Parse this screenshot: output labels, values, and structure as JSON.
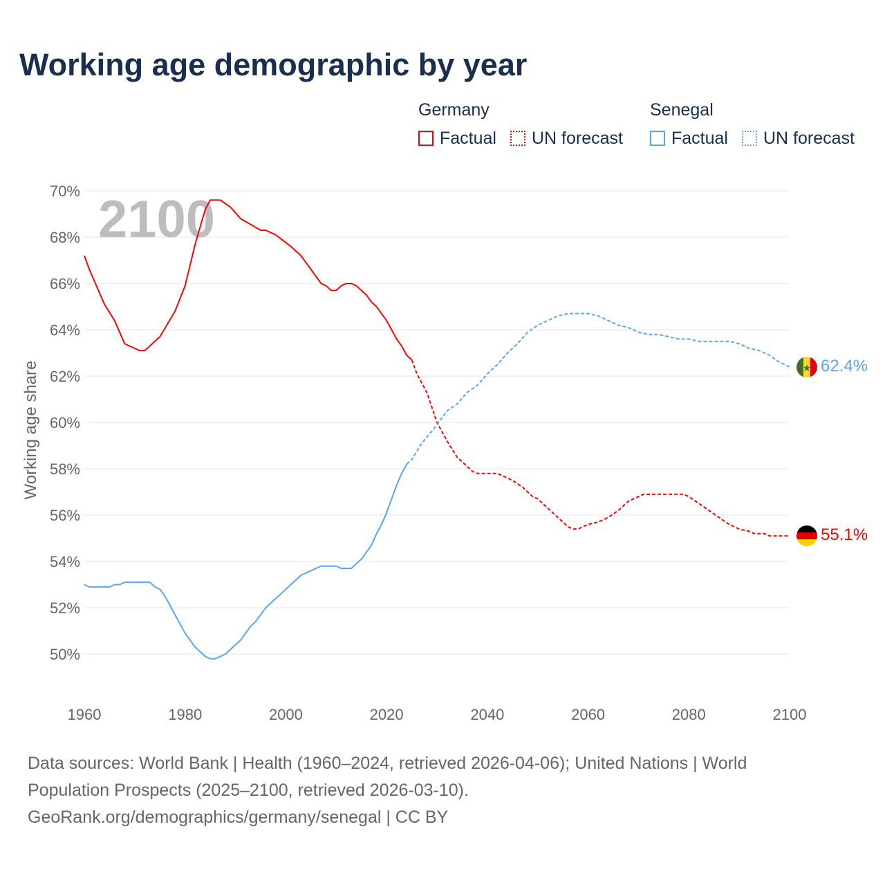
{
  "chart_data": {
    "type": "line",
    "title": "Working age demographic by year",
    "ylabel": "Working age share",
    "xlabel": "",
    "xlim": [
      1960,
      2100
    ],
    "ylim": [
      50,
      70
    ],
    "x_ticks": [
      "1960",
      "1980",
      "2000",
      "2020",
      "2040",
      "2060",
      "2080",
      "2100"
    ],
    "y_ticks": [
      "50%",
      "52%",
      "54%",
      "56%",
      "58%",
      "60%",
      "62%",
      "64%",
      "66%",
      "68%",
      "70%"
    ],
    "grid": true,
    "watermark_year": "2100",
    "legend": {
      "placement": "top-right",
      "groups": [
        {
          "name": "Germany",
          "entries": [
            "Factual",
            "UN forecast"
          ],
          "color": "#ff0000"
        },
        {
          "name": "Senegal",
          "entries": [
            "Factual",
            "UN forecast"
          ],
          "color": "#5aa5ef"
        }
      ]
    },
    "series": [
      {
        "name": "Germany",
        "color": "#ff0000",
        "end_label": "55.1%",
        "factual": [
          [
            1960,
            67.2
          ],
          [
            1961,
            66.6
          ],
          [
            1964,
            65.1
          ],
          [
            1966,
            64.4
          ],
          [
            1968,
            63.4
          ],
          [
            1971,
            63.1
          ],
          [
            1972,
            63.1
          ],
          [
            1975,
            63.7
          ],
          [
            1978,
            64.8
          ],
          [
            1980,
            65.9
          ],
          [
            1982,
            67.7
          ],
          [
            1984,
            69.2
          ],
          [
            1985,
            69.6
          ],
          [
            1987,
            69.6
          ],
          [
            1989,
            69.3
          ],
          [
            1991,
            68.8
          ],
          [
            1995,
            68.3
          ],
          [
            1996,
            68.3
          ],
          [
            1998,
            68.1
          ],
          [
            2001,
            67.6
          ],
          [
            2003,
            67.2
          ],
          [
            2005,
            66.6
          ],
          [
            2007,
            66.0
          ],
          [
            2008,
            65.9
          ],
          [
            2009,
            65.7
          ],
          [
            2010,
            65.7
          ],
          [
            2011,
            65.9
          ],
          [
            2012,
            66.0
          ],
          [
            2013,
            66.0
          ],
          [
            2014,
            65.9
          ],
          [
            2016,
            65.5
          ],
          [
            2017,
            65.2
          ],
          [
            2018,
            65.0
          ],
          [
            2020,
            64.4
          ],
          [
            2022,
            63.6
          ],
          [
            2023,
            63.3
          ],
          [
            2024,
            62.9
          ],
          [
            2025,
            62.7
          ]
        ],
        "forecast": [
          [
            2025,
            62.7
          ],
          [
            2026,
            62.1
          ],
          [
            2028,
            61.3
          ],
          [
            2030,
            60.0
          ],
          [
            2032,
            59.2
          ],
          [
            2034,
            58.5
          ],
          [
            2036,
            58.1
          ],
          [
            2037,
            57.9
          ],
          [
            2038,
            57.8
          ],
          [
            2042,
            57.8
          ],
          [
            2045,
            57.5
          ],
          [
            2047,
            57.2
          ],
          [
            2049,
            56.8
          ],
          [
            2050,
            56.7
          ],
          [
            2052,
            56.3
          ],
          [
            2054,
            55.9
          ],
          [
            2056,
            55.5
          ],
          [
            2057,
            55.4
          ],
          [
            2058,
            55.4
          ],
          [
            2060,
            55.6
          ],
          [
            2062,
            55.7
          ],
          [
            2064,
            55.9
          ],
          [
            2066,
            56.2
          ],
          [
            2068,
            56.6
          ],
          [
            2070,
            56.8
          ],
          [
            2071,
            56.9
          ],
          [
            2079,
            56.9
          ],
          [
            2080,
            56.8
          ],
          [
            2082,
            56.5
          ],
          [
            2084,
            56.2
          ],
          [
            2086,
            55.9
          ],
          [
            2088,
            55.6
          ],
          [
            2090,
            55.4
          ],
          [
            2092,
            55.3
          ],
          [
            2093,
            55.2
          ],
          [
            2095,
            55.2
          ],
          [
            2096,
            55.1
          ],
          [
            2100,
            55.1
          ]
        ]
      },
      {
        "name": "Senegal",
        "color": "#5aa5ef",
        "end_label": "62.4%",
        "factual": [
          [
            1960,
            53.0
          ],
          [
            1961,
            52.9
          ],
          [
            1965,
            52.9
          ],
          [
            1966,
            53.0
          ],
          [
            1967,
            53.0
          ],
          [
            1968,
            53.1
          ],
          [
            1973,
            53.1
          ],
          [
            1974,
            52.9
          ],
          [
            1975,
            52.8
          ],
          [
            1976,
            52.5
          ],
          [
            1978,
            51.7
          ],
          [
            1980,
            50.9
          ],
          [
            1982,
            50.3
          ],
          [
            1984,
            49.9
          ],
          [
            1985,
            49.8
          ],
          [
            1986,
            49.8
          ],
          [
            1988,
            50.0
          ],
          [
            1991,
            50.6
          ],
          [
            1993,
            51.2
          ],
          [
            1994,
            51.4
          ],
          [
            1996,
            52.0
          ],
          [
            1998,
            52.4
          ],
          [
            2000,
            52.8
          ],
          [
            2003,
            53.4
          ],
          [
            2005,
            53.6
          ],
          [
            2007,
            53.8
          ],
          [
            2010,
            53.8
          ],
          [
            2011,
            53.7
          ],
          [
            2013,
            53.7
          ],
          [
            2015,
            54.1
          ],
          [
            2017,
            54.7
          ],
          [
            2018,
            55.2
          ],
          [
            2019,
            55.6
          ],
          [
            2020,
            56.1
          ],
          [
            2022,
            57.3
          ],
          [
            2023,
            57.8
          ],
          [
            2024,
            58.2
          ]
        ],
        "forecast": [
          [
            2024,
            58.2
          ],
          [
            2025,
            58.4
          ],
          [
            2027,
            59.1
          ],
          [
            2030,
            59.9
          ],
          [
            2032,
            60.5
          ],
          [
            2034,
            60.8
          ],
          [
            2036,
            61.3
          ],
          [
            2038,
            61.6
          ],
          [
            2040,
            62.1
          ],
          [
            2042,
            62.5
          ],
          [
            2044,
            63.0
          ],
          [
            2046,
            63.4
          ],
          [
            2048,
            63.9
          ],
          [
            2050,
            64.2
          ],
          [
            2052,
            64.4
          ],
          [
            2054,
            64.6
          ],
          [
            2056,
            64.7
          ],
          [
            2060,
            64.7
          ],
          [
            2062,
            64.6
          ],
          [
            2064,
            64.4
          ],
          [
            2066,
            64.2
          ],
          [
            2068,
            64.1
          ],
          [
            2070,
            63.9
          ],
          [
            2072,
            63.8
          ],
          [
            2074,
            63.8
          ],
          [
            2076,
            63.7
          ],
          [
            2078,
            63.6
          ],
          [
            2080,
            63.6
          ],
          [
            2082,
            63.5
          ],
          [
            2088,
            63.5
          ],
          [
            2090,
            63.4
          ],
          [
            2092,
            63.2
          ],
          [
            2094,
            63.1
          ],
          [
            2096,
            62.9
          ],
          [
            2098,
            62.6
          ],
          [
            2100,
            62.4
          ]
        ]
      }
    ]
  },
  "footer": {
    "line1": "Data sources: World Bank | Health (1960–2024, retrieved 2026-04-06); United Nations | World",
    "line2": "Population Prospects (2025–2100, retrieved 2026-03-10).",
    "line3": "GeoRank.org/demographics/germany/senegal | CC BY"
  }
}
